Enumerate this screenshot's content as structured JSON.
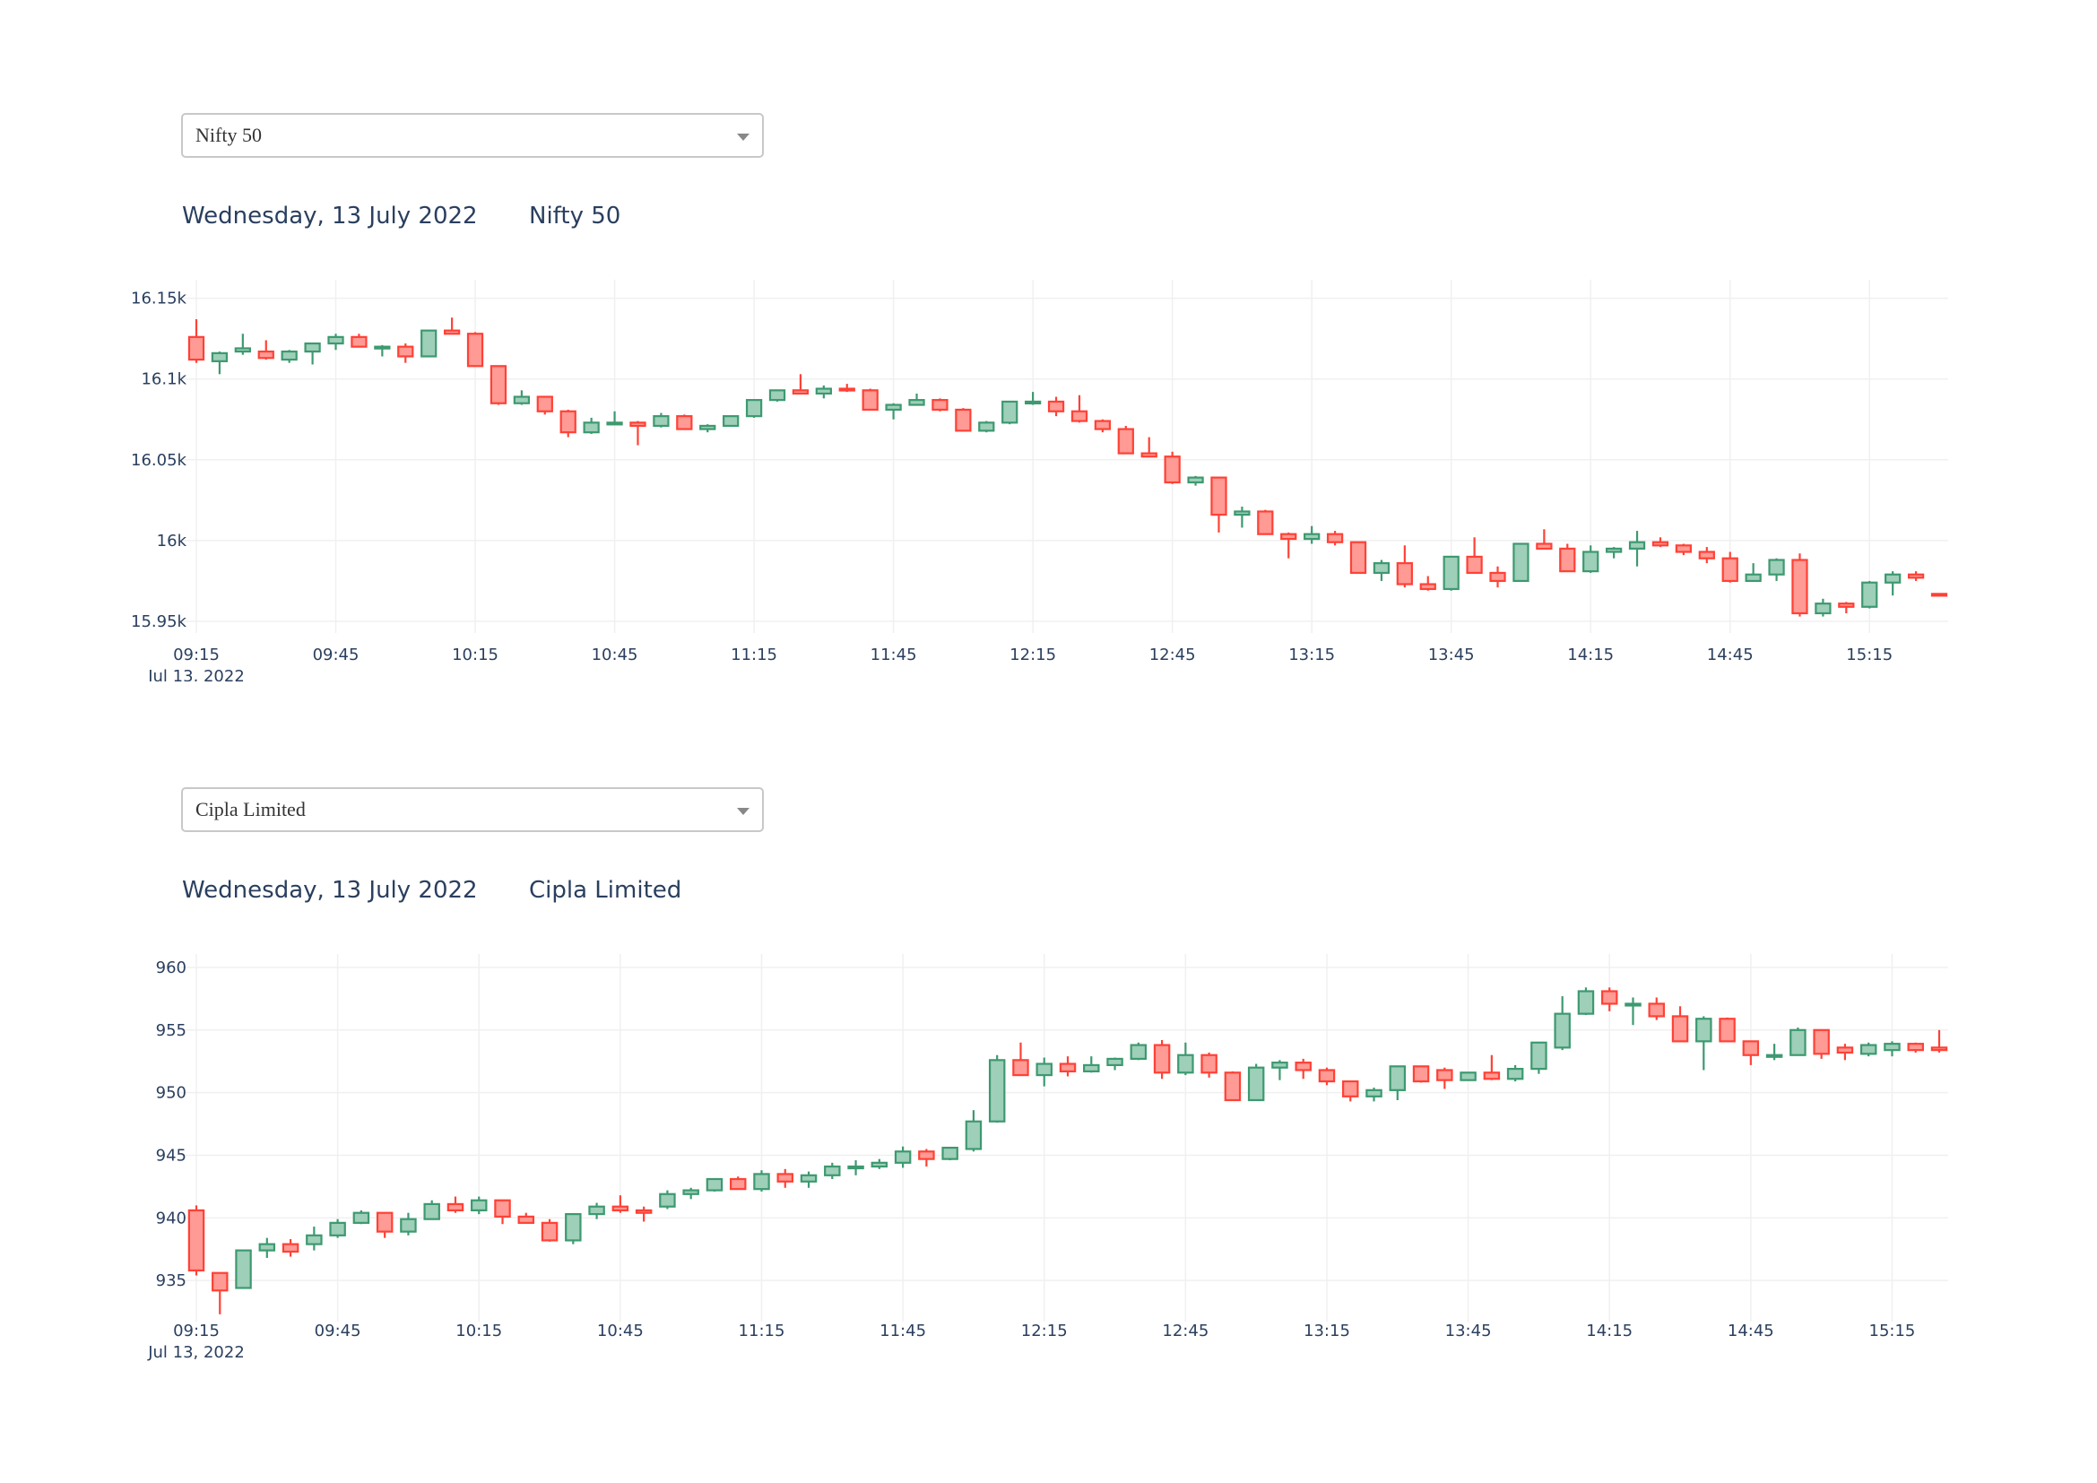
{
  "panels": [
    {
      "selector": {
        "value": "Nifty 50"
      },
      "date_label": "Wednesday, 13 July 2022",
      "name_label": "Nifty 50"
    },
    {
      "selector": {
        "value": "Cipla Limited"
      },
      "date_label": "Wednesday, 13 July 2022",
      "name_label": "Cipla Limited"
    }
  ],
  "colors": {
    "increasing": "#3d9970",
    "decreasing": "#ff4136",
    "inc_fill": "#9ecfb8",
    "dec_fill": "#ff9a94",
    "grid": "#f0f0f0",
    "tick": "#2a3f5f"
  },
  "chart_data": [
    {
      "type": "candlestick",
      "interval_minutes": 5,
      "x_start": "09:15",
      "x_start_date": "Jul 13, 2022",
      "x_ticks": [
        "09:15",
        "09:45",
        "10:15",
        "10:45",
        "11:15",
        "11:45",
        "12:15",
        "12:45",
        "13:15",
        "13:45",
        "14:15",
        "14:45",
        "15:15"
      ],
      "y_ticks": [
        15950,
        16000,
        16050,
        16100,
        16150
      ],
      "y_tick_labels": [
        "15.95k",
        "16k",
        "16.05k",
        "16.1k",
        "16.15k"
      ],
      "ylim": [
        15945,
        16157
      ],
      "ohlc": [
        [
          16126,
          16137,
          16110,
          16112
        ],
        [
          16111,
          16117,
          16103,
          16116
        ],
        [
          16117,
          16128,
          16115,
          16119
        ],
        [
          16117,
          16124,
          16112,
          16113
        ],
        [
          16112,
          16118,
          16110,
          16117
        ],
        [
          16117,
          16122,
          16109,
          16122
        ],
        [
          16122,
          16128,
          16118,
          16126
        ],
        [
          16126,
          16128,
          16120,
          16120
        ],
        [
          16120,
          16121,
          16114,
          16120
        ],
        [
          16120,
          16122,
          16110,
          16114
        ],
        [
          16114,
          16130,
          16114,
          16130
        ],
        [
          16130,
          16138,
          16128,
          16128
        ],
        [
          16128,
          16129,
          16108,
          16108
        ],
        [
          16108,
          16108,
          16084,
          16085
        ],
        [
          16085,
          16093,
          16084,
          16089
        ],
        [
          16089,
          16089,
          16078,
          16080
        ],
        [
          16080,
          16081,
          16064,
          16067
        ],
        [
          16067,
          16076,
          16066,
          16073
        ],
        [
          16073,
          16080,
          16073,
          16073
        ],
        [
          16073,
          16074,
          16059,
          16071
        ],
        [
          16071,
          16079,
          16070,
          16077
        ],
        [
          16077,
          16078,
          16069,
          16069
        ],
        [
          16069,
          16072,
          16067,
          16071
        ],
        [
          16071,
          16077,
          16071,
          16077
        ],
        [
          16077,
          16087,
          16076,
          16087
        ],
        [
          16087,
          16093,
          16086,
          16093
        ],
        [
          16093,
          16103,
          16091,
          16091
        ],
        [
          16091,
          16096,
          16088,
          16094
        ],
        [
          16094,
          16097,
          16092,
          16093
        ],
        [
          16093,
          16094,
          16081,
          16081
        ],
        [
          16081,
          16085,
          16075,
          16084
        ],
        [
          16084,
          16091,
          16084,
          16087
        ],
        [
          16087,
          16088,
          16080,
          16081
        ],
        [
          16081,
          16082,
          16068,
          16068
        ],
        [
          16068,
          16074,
          16067,
          16073
        ],
        [
          16073,
          16086,
          16072,
          16086
        ],
        [
          16086,
          16092,
          16084,
          16086
        ],
        [
          16086,
          16089,
          16077,
          16080
        ],
        [
          16080,
          16090,
          16073,
          16074
        ],
        [
          16074,
          16075,
          16067,
          16069
        ],
        [
          16069,
          16071,
          16054,
          16054
        ],
        [
          16054,
          16064,
          16052,
          16052
        ],
        [
          16052,
          16055,
          16035,
          16036
        ],
        [
          16036,
          16040,
          16034,
          16039
        ],
        [
          16039,
          16039,
          16005,
          16016
        ],
        [
          16016,
          16021,
          16008,
          16018
        ],
        [
          16018,
          16019,
          16004,
          16004
        ],
        [
          16004,
          16005,
          15989,
          16001
        ],
        [
          16001,
          16009,
          15998,
          16004
        ],
        [
          16004,
          16006,
          15997,
          15999
        ],
        [
          15999,
          15999,
          15980,
          15980
        ],
        [
          15980,
          15988,
          15975,
          15986
        ],
        [
          15986,
          15997,
          15971,
          15973
        ],
        [
          15973,
          15978,
          15969,
          15970
        ],
        [
          15970,
          15990,
          15969,
          15990
        ],
        [
          15990,
          16002,
          15980,
          15980
        ],
        [
          15980,
          15984,
          15971,
          15975
        ],
        [
          15975,
          15998,
          15975,
          15998
        ],
        [
          15998,
          16007,
          15995,
          15995
        ],
        [
          15995,
          15998,
          15981,
          15981
        ],
        [
          15981,
          15997,
          15980,
          15993
        ],
        [
          15993,
          15996,
          15989,
          15995
        ],
        [
          15995,
          16006,
          15984,
          15999
        ],
        [
          15999,
          16002,
          15996,
          15997
        ],
        [
          15997,
          15998,
          15991,
          15993
        ],
        [
          15993,
          15996,
          15986,
          15989
        ],
        [
          15989,
          15993,
          15974,
          15975
        ],
        [
          15975,
          15986,
          15975,
          15979
        ],
        [
          15979,
          15989,
          15975,
          15988
        ],
        [
          15988,
          15992,
          15953,
          15955
        ],
        [
          15955,
          15964,
          15953,
          15961
        ],
        [
          15961,
          15962,
          15955,
          15959
        ],
        [
          15959,
          15975,
          15958,
          15974
        ],
        [
          15974,
          15981,
          15966,
          15979
        ],
        [
          15979,
          15981,
          15975,
          15977
        ],
        [
          15967,
          15967,
          15967,
          15966
        ]
      ]
    },
    {
      "type": "candlestick",
      "interval_minutes": 5,
      "x_start": "09:15",
      "x_start_date": "Jul 13, 2022",
      "x_ticks": [
        "09:15",
        "09:45",
        "10:15",
        "10:45",
        "11:15",
        "11:45",
        "12:15",
        "12:45",
        "13:15",
        "13:45",
        "14:15",
        "14:45",
        "15:15"
      ],
      "y_ticks": [
        935,
        940,
        945,
        950,
        955,
        960
      ],
      "y_tick_labels": [
        "935",
        "940",
        "945",
        "950",
        "955",
        "960"
      ],
      "ylim": [
        932,
        960.5
      ],
      "ohlc": [
        [
          940.6,
          941,
          935.4,
          935.8
        ],
        [
          935.6,
          935.6,
          932.3,
          934.2
        ],
        [
          934.4,
          937.4,
          934.4,
          937.4
        ],
        [
          937.4,
          938.4,
          936.8,
          937.9
        ],
        [
          937.9,
          938.3,
          936.9,
          937.3
        ],
        [
          937.9,
          939.3,
          937.4,
          938.6
        ],
        [
          938.6,
          939.9,
          938.4,
          939.6
        ],
        [
          939.6,
          940.6,
          939.5,
          940.4
        ],
        [
          940.4,
          940.4,
          938.4,
          938.9
        ],
        [
          938.9,
          940.4,
          938.6,
          939.9
        ],
        [
          939.9,
          941.4,
          939.9,
          941.1
        ],
        [
          941.1,
          941.7,
          940.4,
          940.6
        ],
        [
          940.6,
          941.7,
          940.3,
          941.4
        ],
        [
          941.4,
          941.4,
          939.5,
          940.1
        ],
        [
          940.1,
          940.4,
          939.6,
          939.6
        ],
        [
          939.6,
          939.9,
          938.1,
          938.2
        ],
        [
          938.2,
          940.3,
          937.9,
          940.3
        ],
        [
          940.3,
          941.2,
          939.9,
          940.9
        ],
        [
          940.9,
          941.8,
          940.4,
          940.6
        ],
        [
          940.6,
          940.9,
          939.7,
          940.4
        ],
        [
          940.9,
          942.2,
          940.7,
          941.9
        ],
        [
          941.9,
          942.4,
          941.5,
          942.2
        ],
        [
          942.2,
          943.1,
          942.1,
          943.1
        ],
        [
          943.1,
          943.3,
          942.3,
          942.3
        ],
        [
          942.3,
          943.8,
          942.1,
          943.5
        ],
        [
          943.5,
          943.9,
          942.4,
          942.9
        ],
        [
          942.9,
          943.7,
          942.4,
          943.4
        ],
        [
          943.4,
          944.4,
          943.1,
          944.1
        ],
        [
          944.1,
          944.6,
          943.4,
          944.1
        ],
        [
          944.1,
          944.7,
          943.9,
          944.4
        ],
        [
          944.4,
          945.7,
          944.0,
          945.3
        ],
        [
          945.3,
          945.5,
          944.1,
          944.7
        ],
        [
          944.7,
          945.6,
          944.6,
          945.6
        ],
        [
          945.5,
          948.6,
          945.3,
          947.7
        ],
        [
          947.7,
          953.0,
          947.6,
          952.6
        ],
        [
          952.6,
          954.0,
          951.4,
          951.4
        ],
        [
          951.4,
          952.8,
          950.5,
          952.3
        ],
        [
          952.3,
          952.9,
          951.3,
          951.7
        ],
        [
          951.7,
          952.9,
          951.6,
          952.2
        ],
        [
          952.2,
          952.8,
          951.8,
          952.7
        ],
        [
          952.7,
          954.0,
          952.6,
          953.8
        ],
        [
          953.8,
          954.2,
          951.1,
          951.6
        ],
        [
          951.6,
          954.0,
          951.4,
          953.0
        ],
        [
          953.0,
          953.2,
          951.2,
          951.6
        ],
        [
          951.6,
          951.7,
          949.4,
          949.4
        ],
        [
          949.4,
          952.3,
          949.4,
          952.0
        ],
        [
          952.0,
          952.6,
          951.0,
          952.4
        ],
        [
          952.4,
          952.7,
          951.1,
          951.8
        ],
        [
          951.8,
          952.0,
          950.6,
          950.9
        ],
        [
          950.9,
          950.9,
          949.3,
          949.7
        ],
        [
          949.7,
          950.4,
          949.3,
          950.2
        ],
        [
          950.2,
          952.1,
          949.4,
          952.1
        ],
        [
          952.1,
          952.1,
          950.8,
          950.9
        ],
        [
          951.8,
          952.0,
          950.3,
          951.0
        ],
        [
          951.0,
          951.6,
          951.0,
          951.6
        ],
        [
          951.6,
          953.0,
          951.0,
          951.1
        ],
        [
          951.1,
          952.2,
          950.9,
          951.9
        ],
        [
          951.9,
          954.0,
          951.5,
          954.0
        ],
        [
          953.6,
          957.7,
          953.4,
          956.3
        ],
        [
          956.3,
          958.4,
          956.2,
          958.1
        ],
        [
          958.1,
          958.4,
          956.5,
          957.1
        ],
        [
          957.1,
          957.6,
          955.4,
          957.1
        ],
        [
          957.1,
          957.6,
          955.8,
          956.1
        ],
        [
          956.1,
          956.9,
          954.1,
          954.1
        ],
        [
          954.1,
          956.1,
          951.8,
          955.9
        ],
        [
          955.9,
          956.0,
          954.1,
          954.1
        ],
        [
          954.1,
          954.1,
          952.2,
          953.0
        ],
        [
          953.0,
          953.9,
          952.6,
          953.0
        ],
        [
          953.0,
          955.2,
          953.0,
          955.0
        ],
        [
          955.0,
          955.0,
          952.7,
          953.1
        ],
        [
          953.6,
          953.9,
          952.6,
          953.2
        ],
        [
          953.1,
          954.0,
          952.9,
          953.8
        ],
        [
          953.4,
          954.1,
          952.9,
          953.9
        ],
        [
          953.9,
          954.0,
          953.2,
          953.4
        ],
        [
          953.6,
          955.0,
          953.2,
          953.4
        ]
      ]
    }
  ]
}
